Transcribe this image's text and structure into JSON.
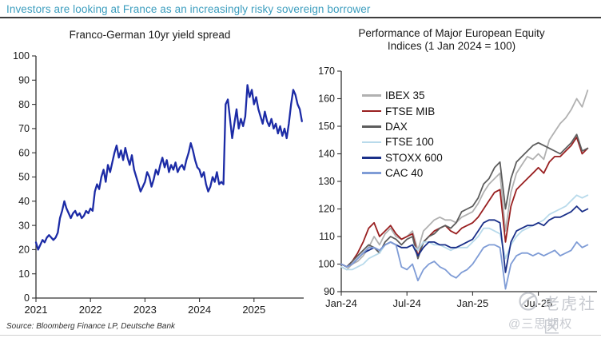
{
  "header": {
    "title": "Investors are looking at France as an increasingly risky sovereign borrower"
  },
  "source": "Source: Bloomberg Finance LP, Deutsche Bank",
  "watermark": {
    "line1": "老虎社区",
    "line2": "@三思期权"
  },
  "colors": {
    "header_accent": "#3b9dbe",
    "spread_line": "#1c2ba6",
    "ibex": "#b1b1b1",
    "ftse_mib": "#992021",
    "dax": "#5d5d5d",
    "ftse_100": "#b8daeb",
    "stoxx_600": "#1b3089",
    "cac_40": "#7f9cd6"
  },
  "chart_data": [
    {
      "id": "spread",
      "type": "line",
      "title": "Franco-German 10yr yield spread",
      "xlabel": "",
      "ylabel": "",
      "ylim": [
        0,
        100
      ],
      "yticks": [
        0,
        10,
        20,
        30,
        40,
        50,
        60,
        70,
        80,
        90,
        100
      ],
      "xlim": [
        2021,
        2025.95
      ],
      "xticks": [
        {
          "v": 2021,
          "label": "2021"
        },
        {
          "v": 2022,
          "label": "2022"
        },
        {
          "v": 2023,
          "label": "2023"
        },
        {
          "v": 2024,
          "label": "2024"
        },
        {
          "v": 2025,
          "label": "2025"
        }
      ],
      "grid": false,
      "legend": "none",
      "series": [
        {
          "name": "Franco-German 10yr yield spread (bps)",
          "color": "#1c2ba6",
          "x_start": 2021.0,
          "x_step": 0.04,
          "values": [
            23,
            20,
            22,
            24,
            23,
            25,
            26,
            25,
            24,
            25,
            27,
            33,
            36,
            40,
            37,
            35,
            33,
            35,
            36,
            34,
            35,
            33,
            34,
            36,
            35,
            37,
            36,
            44,
            47,
            45,
            50,
            53,
            48,
            55,
            52,
            56,
            60,
            63,
            58,
            61,
            57,
            62,
            58,
            55,
            59,
            53,
            50,
            47,
            44,
            46,
            48,
            52,
            50,
            46,
            49,
            53,
            51,
            55,
            58,
            54,
            57,
            52,
            55,
            53,
            56,
            52,
            54,
            55,
            53,
            57,
            60,
            64,
            61,
            57,
            54,
            53,
            50,
            52,
            47,
            44,
            46,
            50,
            48,
            52,
            47,
            48,
            47,
            80,
            82,
            74,
            66,
            72,
            78,
            70,
            74,
            71,
            75,
            88,
            83,
            86,
            80,
            83,
            78,
            75,
            72,
            77,
            73,
            71,
            74,
            70,
            72,
            68,
            71,
            67,
            70,
            66,
            72,
            80,
            86,
            84,
            80,
            78,
            73
          ]
        }
      ]
    },
    {
      "id": "equities",
      "type": "line",
      "title_line1": "Performance of Major European Equity",
      "title_line2": "Indices (1 Jan 2024 = 100)",
      "xlabel": "",
      "ylabel": "",
      "ylim": [
        90,
        170
      ],
      "yticks": [
        90,
        100,
        110,
        120,
        130,
        140,
        150,
        160,
        170
      ],
      "xlim": [
        0,
        23
      ],
      "xticks": [
        {
          "v": 0,
          "label": "Jan-24"
        },
        {
          "v": 6,
          "label": "Jul-24"
        },
        {
          "v": 12,
          "label": "Jan-25"
        },
        {
          "v": 18,
          "label": "Jul-25"
        }
      ],
      "grid": false,
      "legend": "upper-left",
      "series": [
        {
          "name": "IBEX 35",
          "color": "#b1b1b1",
          "x_start": 0,
          "x_step": 0.5,
          "values": [
            99,
            98,
            100,
            101,
            103,
            106,
            110,
            107,
            111,
            113,
            110,
            109,
            110,
            112,
            105,
            112,
            114,
            116,
            117,
            116,
            116,
            115,
            117,
            118,
            119,
            122,
            126,
            129,
            131,
            133,
            112,
            126,
            133,
            136,
            139,
            138,
            140,
            138,
            145,
            148,
            151,
            153,
            156,
            160,
            157,
            163
          ]
        },
        {
          "name": "FTSE MIB",
          "color": "#992021",
          "x_start": 0,
          "x_step": 0.5,
          "values": [
            100,
            99,
            101,
            104,
            108,
            113,
            115,
            110,
            112,
            114,
            111,
            109,
            110,
            111,
            103,
            108,
            110,
            112,
            113,
            114,
            112,
            111,
            113,
            114,
            115,
            117,
            120,
            123,
            126,
            127,
            108,
            121,
            127,
            129,
            131,
            133,
            135,
            133,
            137,
            139,
            139,
            141,
            143,
            146,
            140,
            142
          ]
        },
        {
          "name": "DAX",
          "color": "#5d5d5d",
          "x_start": 0,
          "x_step": 0.5,
          "values": [
            100,
            99,
            101,
            103,
            105,
            107,
            106,
            104,
            108,
            110,
            109,
            107,
            109,
            110,
            102,
            108,
            110,
            111,
            113,
            114,
            113,
            115,
            119,
            120,
            121,
            124,
            129,
            131,
            135,
            137,
            120,
            131,
            137,
            139,
            141,
            143,
            144,
            143,
            142,
            141,
            140,
            142,
            144,
            147,
            141,
            142
          ]
        },
        {
          "name": "FTSE 100",
          "color": "#b8daeb",
          "x_start": 0,
          "x_step": 0.5,
          "values": [
            99,
            98,
            98,
            99,
            100,
            102,
            103,
            104,
            107,
            108,
            107,
            106,
            106,
            107,
            105,
            108,
            108,
            107,
            107,
            106,
            105,
            106,
            106,
            106,
            108,
            110,
            113,
            113,
            112,
            111,
            102,
            107,
            110,
            112,
            113,
            114,
            115,
            116,
            118,
            119,
            120,
            121,
            123,
            125,
            124,
            125
          ]
        },
        {
          "name": "STOXX 600",
          "color": "#1b3089",
          "x_start": 0,
          "x_step": 0.5,
          "values": [
            100,
            99,
            100,
            102,
            104,
            105,
            106,
            105,
            107,
            108,
            107,
            106,
            106,
            107,
            103,
            106,
            108,
            108,
            107,
            107,
            106,
            106,
            107,
            108,
            109,
            112,
            115,
            116,
            116,
            115,
            97,
            108,
            112,
            113,
            114,
            114,
            115,
            114,
            116,
            117,
            117,
            118,
            119,
            121,
            119,
            120
          ]
        },
        {
          "name": "CAC 40",
          "color": "#7f9cd6",
          "x_start": 0,
          "x_step": 0.5,
          "values": [
            100,
            99,
            100,
            102,
            104,
            106,
            106,
            105,
            107,
            108,
            107,
            99,
            98,
            100,
            94,
            98,
            100,
            101,
            99,
            98,
            96,
            95,
            97,
            98,
            100,
            103,
            106,
            107,
            107,
            106,
            91,
            100,
            103,
            104,
            104,
            103,
            104,
            103,
            104,
            105,
            103,
            104,
            105,
            108,
            106,
            107
          ]
        }
      ]
    }
  ]
}
